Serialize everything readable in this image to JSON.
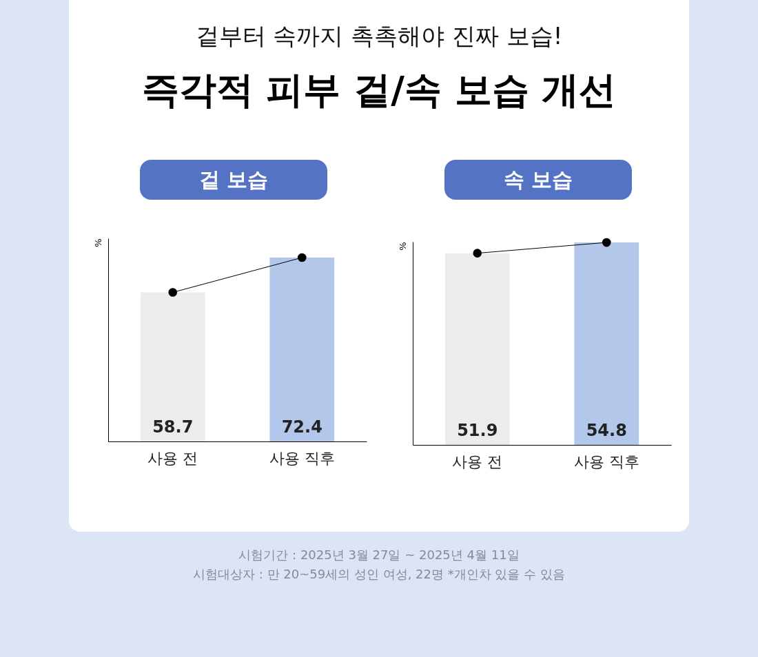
{
  "chart_data": [
    {
      "type": "other",
      "subtitle": "겉부터 속까지 촉촉해야 진짜 보습!",
      "title": "즉각적 피부 겉/속 보습 개선",
      "annotations": [
        "시험기간 : 2025년 3월 27일 ~ 2025년 4월 11일",
        "시험대상자 : 만 20~59세의 성인 여성, 22명 *개인차 있을 수 있음"
      ]
    },
    {
      "type": "bar",
      "title": "겉 보습",
      "ylabel": "%",
      "categories": [
        "사용 전",
        "사용 직후"
      ],
      "series": [
        {
          "type": "bar",
          "colors": [
            "#ececec",
            "#b3c7ea"
          ],
          "values": [
            58.7,
            72.4
          ],
          "value_labels": [
            "58.7",
            "72.4"
          ]
        },
        {
          "type": "line",
          "color": "#000000",
          "marker": "circle",
          "values": [
            58.7,
            72.4
          ]
        }
      ]
    },
    {
      "type": "bar",
      "title": "속 보습",
      "ylabel": "%",
      "categories": [
        "사용 전",
        "사용 직후"
      ],
      "series": [
        {
          "type": "bar",
          "colors": [
            "#ececec",
            "#b3c7ea"
          ],
          "values": [
            51.9,
            54.8
          ],
          "value_labels": [
            "51.9",
            "54.8"
          ]
        },
        {
          "type": "line",
          "color": "#000000",
          "marker": "circle",
          "values": [
            51.9,
            54.8
          ]
        }
      ]
    }
  ]
}
